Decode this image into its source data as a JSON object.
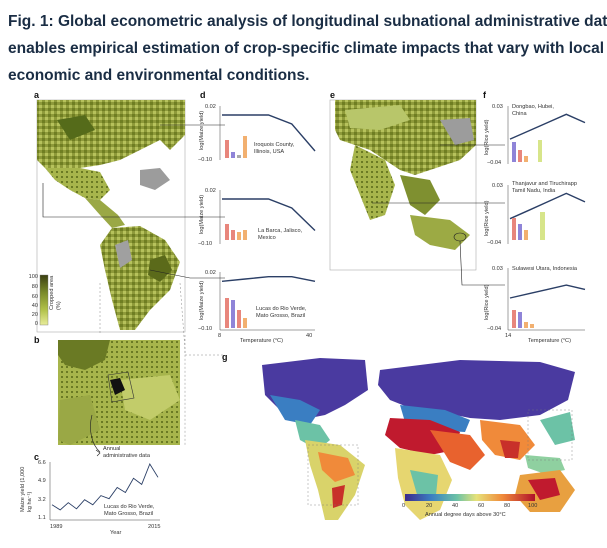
{
  "caption": {
    "line1": "Fig. 1: Global econometric analysis of longitudinal subnational administrative dat",
    "line2": "enables empirical estimation of crop-specific climate impacts that vary with local",
    "line3": "economic and environmental conditions."
  },
  "panels": {
    "a": "a",
    "b": "b",
    "c": "c",
    "d": "d",
    "e": "e",
    "f": "f",
    "g": "g"
  },
  "legend_a": {
    "ticks": [
      "100",
      "80",
      "60",
      "40",
      "20",
      "0"
    ],
    "title": "Cropped area (%)"
  },
  "panel_b": {
    "annotation": "Annual administrative data"
  },
  "panel_c": {
    "ylabel": "Maize yield (1,000 kg ha⁻¹)",
    "yticks": [
      "6.6",
      "4.9",
      "3.2",
      "1.1"
    ],
    "xticks": [
      "1989",
      "2015"
    ],
    "xlabel": "Year",
    "location": "Lucas do Rio Verde, Mato Grosso, Brazil"
  },
  "panel_d": {
    "ylabel": "log(Maize yield)",
    "xlabel": "Temperature (°C)",
    "xticks": [
      "8",
      "40"
    ],
    "rows": [
      {
        "top": "0.02",
        "bottom": "−0.10",
        "location": "Iroquois County, Illinois, USA"
      },
      {
        "top": "0.02",
        "bottom": "−0.10",
        "location": "La Barca, Jalisco, Mexico"
      },
      {
        "top": "0.02",
        "bottom": "−0.10",
        "location": "Lucas do Rio Verde, Mato Grosso, Brazil"
      }
    ]
  },
  "panel_f": {
    "ylabel": "log(Rice yield)",
    "xlabel": "Temperature (°C)",
    "xticks": [
      "14"
    ],
    "rows": [
      {
        "top": "0.03",
        "bottom": "−0.04",
        "location": "Dongbao, Hubei, China"
      },
      {
        "top": "0.03",
        "bottom": "−0.04",
        "location": "Thanjavur and Tiruchirapp Tamil Nadu, India"
      },
      {
        "top": "0.03",
        "bottom": "−0.04",
        "location": "Sulawesi Utara, Indonesia"
      }
    ]
  },
  "legend_g": {
    "ticks": [
      "0",
      "20",
      "40",
      "60",
      "80",
      "100"
    ],
    "title": "Annual degree days above 30°C"
  },
  "colors": {
    "caption": "#1a2d44",
    "curve": "#2b3f66",
    "bar_red": "#e8867c",
    "bar_blue": "#8f84d8",
    "bar_orange": "#f2b070",
    "bar_green": "#d7e58a"
  },
  "chart_data": [
    {
      "type": "line",
      "panel": "c",
      "x": [
        1989,
        1991,
        1993,
        1995,
        1997,
        1999,
        2001,
        2003,
        2005,
        2007,
        2009,
        2011,
        2013,
        2015
      ],
      "values": [
        2.4,
        1.9,
        2.6,
        2.0,
        2.9,
        2.4,
        3.3,
        3.0,
        4.1,
        3.6,
        5.0,
        4.4,
        6.4,
        5.1
      ],
      "xlabel": "Year",
      "ylabel": "Maize yield (1,000 kg ha⁻¹)",
      "ylim": [
        1.1,
        6.6
      ]
    },
    {
      "type": "line",
      "panel": "d",
      "x": [
        8,
        16,
        24,
        32,
        40
      ],
      "series": [
        {
          "values": [
            0.0,
            0.0,
            0.0,
            -0.02,
            -0.08
          ]
        },
        {
          "values": [
            0.0,
            0.0,
            0.0,
            -0.02,
            -0.07
          ]
        },
        {
          "values": [
            0.0,
            0.005,
            0.01,
            0.01,
            0.0
          ]
        }
      ],
      "xlabel": "Temperature (°C)",
      "ylabel": "log(Maize yield)",
      "ylim": [
        -0.1,
        0.02
      ]
    },
    {
      "type": "line",
      "panel": "f",
      "series": [
        {
          "values": [
            -0.01,
            0.0,
            0.01,
            0.02,
            0.01
          ]
        },
        {
          "values": [
            -0.01,
            0.0,
            0.01,
            0.02,
            0.01
          ]
        },
        {
          "values": [
            -0.005,
            0.0,
            0.005,
            0.01,
            0.005
          ]
        }
      ],
      "xlabel": "Temperature (°C)",
      "ylabel": "log(Rice yield)",
      "ylim": [
        -0.04,
        0.03
      ]
    }
  ]
}
